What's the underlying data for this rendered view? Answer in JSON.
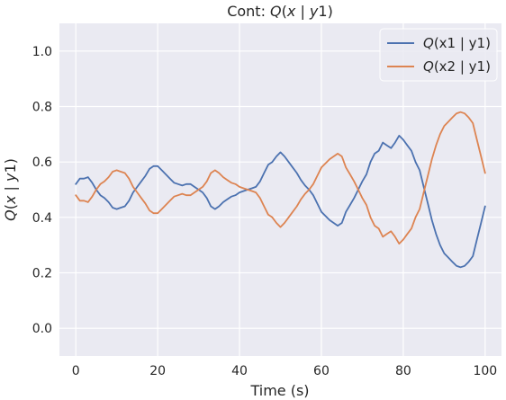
{
  "chart_data": {
    "type": "line",
    "title": "Cont: Q(x | y1)",
    "xlabel": "Time (s)",
    "ylabel": "Q(x | y1)",
    "xlim": [
      -4,
      104
    ],
    "ylim": [
      -0.1,
      1.1
    ],
    "xticks": [
      0,
      20,
      40,
      60,
      80,
      100
    ],
    "yticks": [
      0.0,
      0.2,
      0.4,
      0.6,
      0.8,
      1.0
    ],
    "grid": true,
    "background": "#eaeaf2",
    "legend_position": "top-right",
    "series": [
      {
        "name": "Q(x1 | y1)",
        "color": "#4c72b0",
        "x": [
          0,
          1,
          2,
          3,
          4,
          5,
          6,
          7,
          8,
          9,
          10,
          11,
          12,
          13,
          14,
          15,
          16,
          17,
          18,
          19,
          20,
          21,
          22,
          23,
          24,
          25,
          26,
          27,
          28,
          29,
          30,
          31,
          32,
          33,
          34,
          35,
          36,
          37,
          38,
          39,
          40,
          41,
          42,
          43,
          44,
          45,
          46,
          47,
          48,
          49,
          50,
          51,
          52,
          53,
          54,
          55,
          56,
          57,
          58,
          59,
          60,
          61,
          62,
          63,
          64,
          65,
          66,
          67,
          68,
          69,
          70,
          71,
          72,
          73,
          74,
          75,
          76,
          77,
          78,
          79,
          80,
          81,
          82,
          83,
          84,
          85,
          86,
          87,
          88,
          89,
          90,
          91,
          92,
          93,
          94,
          95,
          96,
          97,
          98,
          99,
          100
        ],
        "y": [
          0.52,
          0.54,
          0.54,
          0.545,
          0.525,
          0.5,
          0.48,
          0.47,
          0.455,
          0.435,
          0.43,
          0.435,
          0.44,
          0.46,
          0.49,
          0.51,
          0.53,
          0.55,
          0.575,
          0.585,
          0.585,
          0.57,
          0.555,
          0.54,
          0.525,
          0.52,
          0.515,
          0.52,
          0.52,
          0.51,
          0.5,
          0.49,
          0.47,
          0.44,
          0.43,
          0.44,
          0.455,
          0.465,
          0.475,
          0.48,
          0.49,
          0.495,
          0.5,
          0.505,
          0.51,
          0.53,
          0.56,
          0.59,
          0.6,
          0.62,
          0.635,
          0.62,
          0.6,
          0.58,
          0.56,
          0.535,
          0.515,
          0.5,
          0.48,
          0.45,
          0.42,
          0.405,
          0.39,
          0.38,
          0.37,
          0.38,
          0.42,
          0.445,
          0.47,
          0.5,
          0.53,
          0.555,
          0.6,
          0.63,
          0.64,
          0.67,
          0.66,
          0.65,
          0.67,
          0.695,
          0.68,
          0.66,
          0.64,
          0.6,
          0.57,
          0.51,
          0.45,
          0.39,
          0.34,
          0.3,
          0.27,
          0.255,
          0.24,
          0.225,
          0.22,
          0.225,
          0.24,
          0.26,
          0.32,
          0.38,
          0.44
        ]
      },
      {
        "name": "Q(x2 | y1)",
        "color": "#dd8452",
        "x": [
          0,
          1,
          2,
          3,
          4,
          5,
          6,
          7,
          8,
          9,
          10,
          11,
          12,
          13,
          14,
          15,
          16,
          17,
          18,
          19,
          20,
          21,
          22,
          23,
          24,
          25,
          26,
          27,
          28,
          29,
          30,
          31,
          32,
          33,
          34,
          35,
          36,
          37,
          38,
          39,
          40,
          41,
          42,
          43,
          44,
          45,
          46,
          47,
          48,
          49,
          50,
          51,
          52,
          53,
          54,
          55,
          56,
          57,
          58,
          59,
          60,
          61,
          62,
          63,
          64,
          65,
          66,
          67,
          68,
          69,
          70,
          71,
          72,
          73,
          74,
          75,
          76,
          77,
          78,
          79,
          80,
          81,
          82,
          83,
          84,
          85,
          86,
          87,
          88,
          89,
          90,
          91,
          92,
          93,
          94,
          95,
          96,
          97,
          98,
          99,
          100
        ],
        "y": [
          0.48,
          0.46,
          0.46,
          0.455,
          0.475,
          0.5,
          0.52,
          0.53,
          0.545,
          0.565,
          0.57,
          0.565,
          0.56,
          0.54,
          0.51,
          0.49,
          0.47,
          0.45,
          0.425,
          0.415,
          0.415,
          0.43,
          0.445,
          0.46,
          0.475,
          0.48,
          0.485,
          0.48,
          0.48,
          0.49,
          0.5,
          0.51,
          0.53,
          0.56,
          0.57,
          0.56,
          0.545,
          0.535,
          0.525,
          0.52,
          0.51,
          0.505,
          0.5,
          0.495,
          0.49,
          0.47,
          0.44,
          0.41,
          0.4,
          0.38,
          0.365,
          0.38,
          0.4,
          0.42,
          0.44,
          0.465,
          0.485,
          0.5,
          0.52,
          0.55,
          0.58,
          0.595,
          0.61,
          0.62,
          0.63,
          0.62,
          0.58,
          0.555,
          0.53,
          0.5,
          0.47,
          0.445,
          0.4,
          0.37,
          0.36,
          0.33,
          0.34,
          0.35,
          0.33,
          0.305,
          0.32,
          0.34,
          0.36,
          0.4,
          0.43,
          0.49,
          0.55,
          0.61,
          0.66,
          0.7,
          0.73,
          0.745,
          0.76,
          0.775,
          0.78,
          0.775,
          0.76,
          0.74,
          0.68,
          0.62,
          0.56
        ]
      }
    ],
    "legend": [
      {
        "label_prefix": "Q",
        "label_main": "(x1 | y1)",
        "color": "#4c72b0"
      },
      {
        "label_prefix": "Q",
        "label_main": "(x2 | y1)",
        "color": "#dd8452"
      }
    ]
  }
}
